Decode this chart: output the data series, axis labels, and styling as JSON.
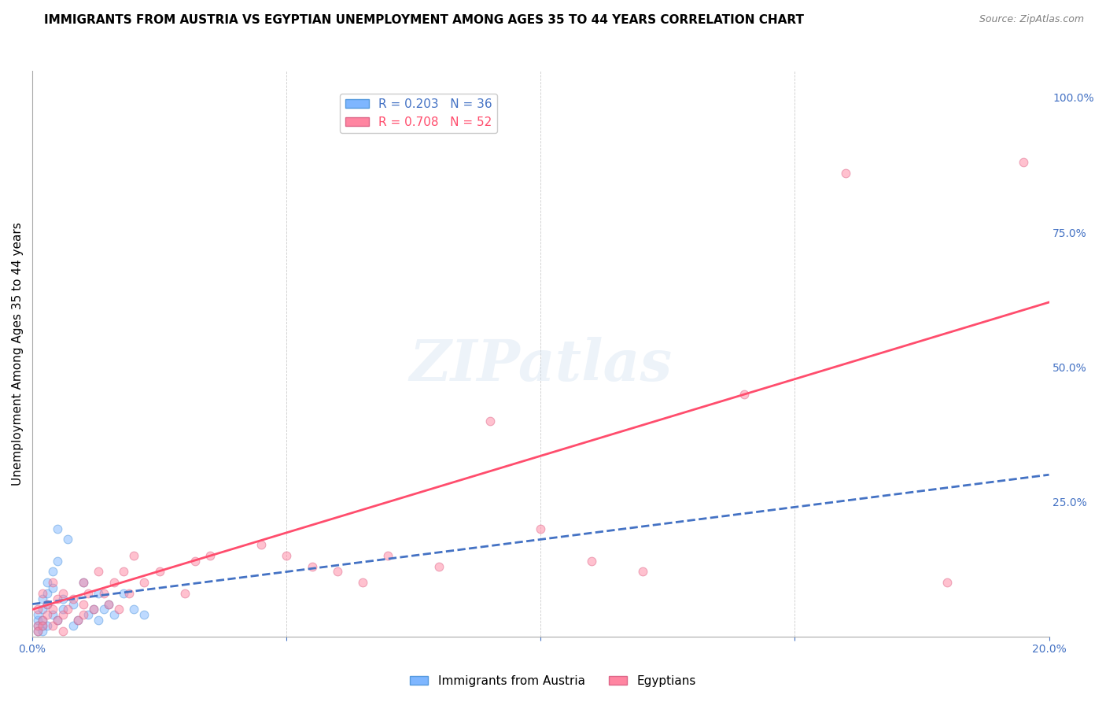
{
  "title": "IMMIGRANTS FROM AUSTRIA VS EGYPTIAN UNEMPLOYMENT AMONG AGES 35 TO 44 YEARS CORRELATION CHART",
  "source": "Source: ZipAtlas.com",
  "xlabel_bottom": "",
  "ylabel": "Unemployment Among Ages 35 to 44 years",
  "xmin": 0.0,
  "xmax": 0.2,
  "ymin": 0.0,
  "ymax": 1.05,
  "yticks": [
    0.0,
    0.25,
    0.5,
    0.75,
    1.0
  ],
  "ytick_labels": [
    "",
    "25.0%",
    "50.0%",
    "75.0%",
    "100.0%"
  ],
  "xticks": [
    0.0,
    0.05,
    0.1,
    0.15,
    0.2
  ],
  "xtick_labels": [
    "0.0%",
    "",
    "",
    "",
    "20.0%"
  ],
  "legend_entries": [
    {
      "label": "R = 0.203   N = 36",
      "color": "#7EB6FF",
      "linestyle": "dashed"
    },
    {
      "label": "R = 0.708   N = 52",
      "color": "#FF85A1",
      "linestyle": "solid"
    }
  ],
  "blue_scatter_x": [
    0.001,
    0.001,
    0.001,
    0.001,
    0.002,
    0.002,
    0.002,
    0.002,
    0.002,
    0.003,
    0.003,
    0.003,
    0.003,
    0.004,
    0.004,
    0.004,
    0.005,
    0.005,
    0.005,
    0.006,
    0.006,
    0.007,
    0.008,
    0.008,
    0.009,
    0.01,
    0.011,
    0.012,
    0.013,
    0.013,
    0.014,
    0.015,
    0.016,
    0.018,
    0.02,
    0.022
  ],
  "blue_scatter_y": [
    0.02,
    0.03,
    0.04,
    0.01,
    0.02,
    0.05,
    0.07,
    0.03,
    0.01,
    0.08,
    0.1,
    0.06,
    0.02,
    0.12,
    0.04,
    0.09,
    0.14,
    0.2,
    0.03,
    0.07,
    0.05,
    0.18,
    0.02,
    0.06,
    0.03,
    0.1,
    0.04,
    0.05,
    0.08,
    0.03,
    0.05,
    0.06,
    0.04,
    0.08,
    0.05,
    0.04
  ],
  "pink_scatter_x": [
    0.001,
    0.001,
    0.001,
    0.002,
    0.002,
    0.002,
    0.003,
    0.003,
    0.004,
    0.004,
    0.004,
    0.005,
    0.005,
    0.006,
    0.006,
    0.006,
    0.007,
    0.008,
    0.009,
    0.01,
    0.01,
    0.01,
    0.011,
    0.012,
    0.013,
    0.014,
    0.015,
    0.016,
    0.017,
    0.018,
    0.019,
    0.02,
    0.022,
    0.025,
    0.03,
    0.032,
    0.035,
    0.045,
    0.05,
    0.055,
    0.06,
    0.065,
    0.07,
    0.08,
    0.09,
    0.1,
    0.11,
    0.12,
    0.14,
    0.16,
    0.18,
    0.195
  ],
  "pink_scatter_y": [
    0.02,
    0.05,
    0.01,
    0.03,
    0.08,
    0.02,
    0.04,
    0.06,
    0.1,
    0.05,
    0.02,
    0.07,
    0.03,
    0.08,
    0.04,
    0.01,
    0.05,
    0.07,
    0.03,
    0.06,
    0.1,
    0.04,
    0.08,
    0.05,
    0.12,
    0.08,
    0.06,
    0.1,
    0.05,
    0.12,
    0.08,
    0.15,
    0.1,
    0.12,
    0.08,
    0.14,
    0.15,
    0.17,
    0.15,
    0.13,
    0.12,
    0.1,
    0.15,
    0.13,
    0.4,
    0.2,
    0.14,
    0.12,
    0.45,
    0.86,
    0.1,
    0.88
  ],
  "blue_line_x": [
    0.0,
    0.2
  ],
  "blue_line_y": [
    0.06,
    0.3
  ],
  "pink_line_x": [
    0.0,
    0.2
  ],
  "pink_line_y": [
    0.05,
    0.62
  ],
  "background_color": "#FFFFFF",
  "scatter_alpha": 0.5,
  "scatter_size": 60,
  "watermark_text": "ZIPatlas",
  "axis_label_color": "#4472C4",
  "tick_color": "#4472C4",
  "grid_color": "#CCCCCC",
  "title_fontsize": 11,
  "axis_label_fontsize": 11,
  "tick_fontsize": 10
}
